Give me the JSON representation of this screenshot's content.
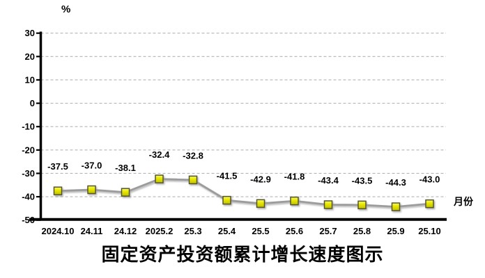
{
  "chart_data": {
    "type": "line",
    "title": "固定资产投资额累计增长速度图示",
    "y_unit_label": "%",
    "x_axis_label": "月份",
    "categories": [
      "2024.10",
      "24.11",
      "24.12",
      "2025.2",
      "25.3",
      "25.4",
      "25.5",
      "25.6",
      "25.7",
      "25.8",
      "25.9",
      "25.10"
    ],
    "values": [
      -37.5,
      -37.0,
      -38.1,
      -32.4,
      -32.8,
      -41.5,
      -42.9,
      -41.8,
      -43.4,
      -43.5,
      -44.3,
      -43.0
    ],
    "data_labels": [
      "-37.5",
      "-37.0",
      "-38.1",
      "-32.4",
      "-32.8",
      "-41.5",
      "-42.9",
      "-41.8",
      "-43.4",
      "-43.5",
      "-44.3",
      "-43.0"
    ],
    "ylim": [
      -50,
      30
    ],
    "y_ticks": [
      30,
      20,
      10,
      0,
      -10,
      -20,
      -30,
      -40,
      -50
    ],
    "grid": true,
    "legend": "none",
    "colors": {
      "line": "#9c9c9c",
      "marker_fill_top": "#f9f978",
      "marker_fill_mid": "#e9e900",
      "marker_fill_bottom": "#c0c000",
      "marker_border": "#55552b",
      "grid": "#b5b5b5",
      "axis": "#000000",
      "label_text": "#000000"
    }
  }
}
